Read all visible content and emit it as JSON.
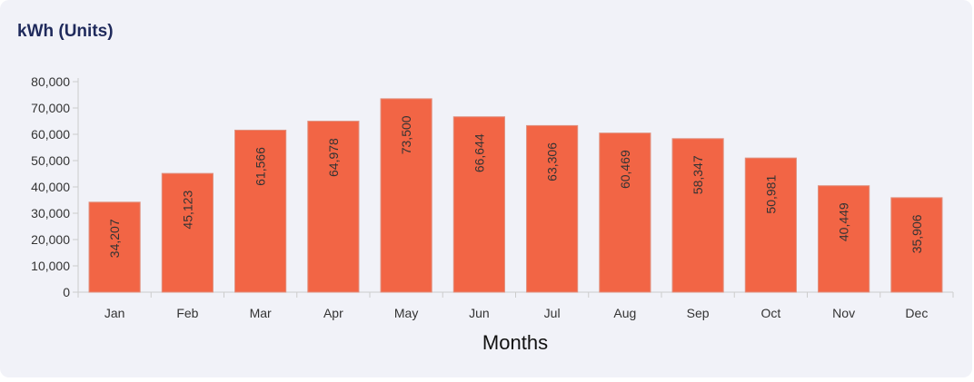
{
  "card": {
    "title": "kWh (Units)"
  },
  "chart_data": {
    "type": "bar",
    "title": "kWh (Units)",
    "xlabel": "Months",
    "ylabel": "",
    "categories": [
      "Jan",
      "Feb",
      "Mar",
      "Apr",
      "May",
      "Jun",
      "Jul",
      "Aug",
      "Sep",
      "Oct",
      "Nov",
      "Dec"
    ],
    "values": [
      34207,
      45123,
      61566,
      64978,
      73500,
      66644,
      63306,
      60469,
      58347,
      50981,
      40449,
      35906
    ],
    "data_labels": [
      "34,207",
      "45,123",
      "61,566",
      "64,978",
      "73,500",
      "66,644",
      "63,306",
      "60,469",
      "58,347",
      "50,981",
      "40,449",
      "35,906"
    ],
    "ylim": [
      0,
      80000
    ],
    "yticks": [
      0,
      10000,
      20000,
      30000,
      40000,
      50000,
      60000,
      70000,
      80000
    ],
    "ytick_labels": [
      "0",
      "10,000",
      "20,000",
      "30,000",
      "40,000",
      "50,000",
      "60,000",
      "70,000",
      "80,000"
    ],
    "grid": false,
    "colors": {
      "bar": "#f26545",
      "bar_stroke": "#e0907e",
      "axis": "#cccccc",
      "card_background": "#f1f2f8",
      "title": "#1f2a5c"
    }
  }
}
